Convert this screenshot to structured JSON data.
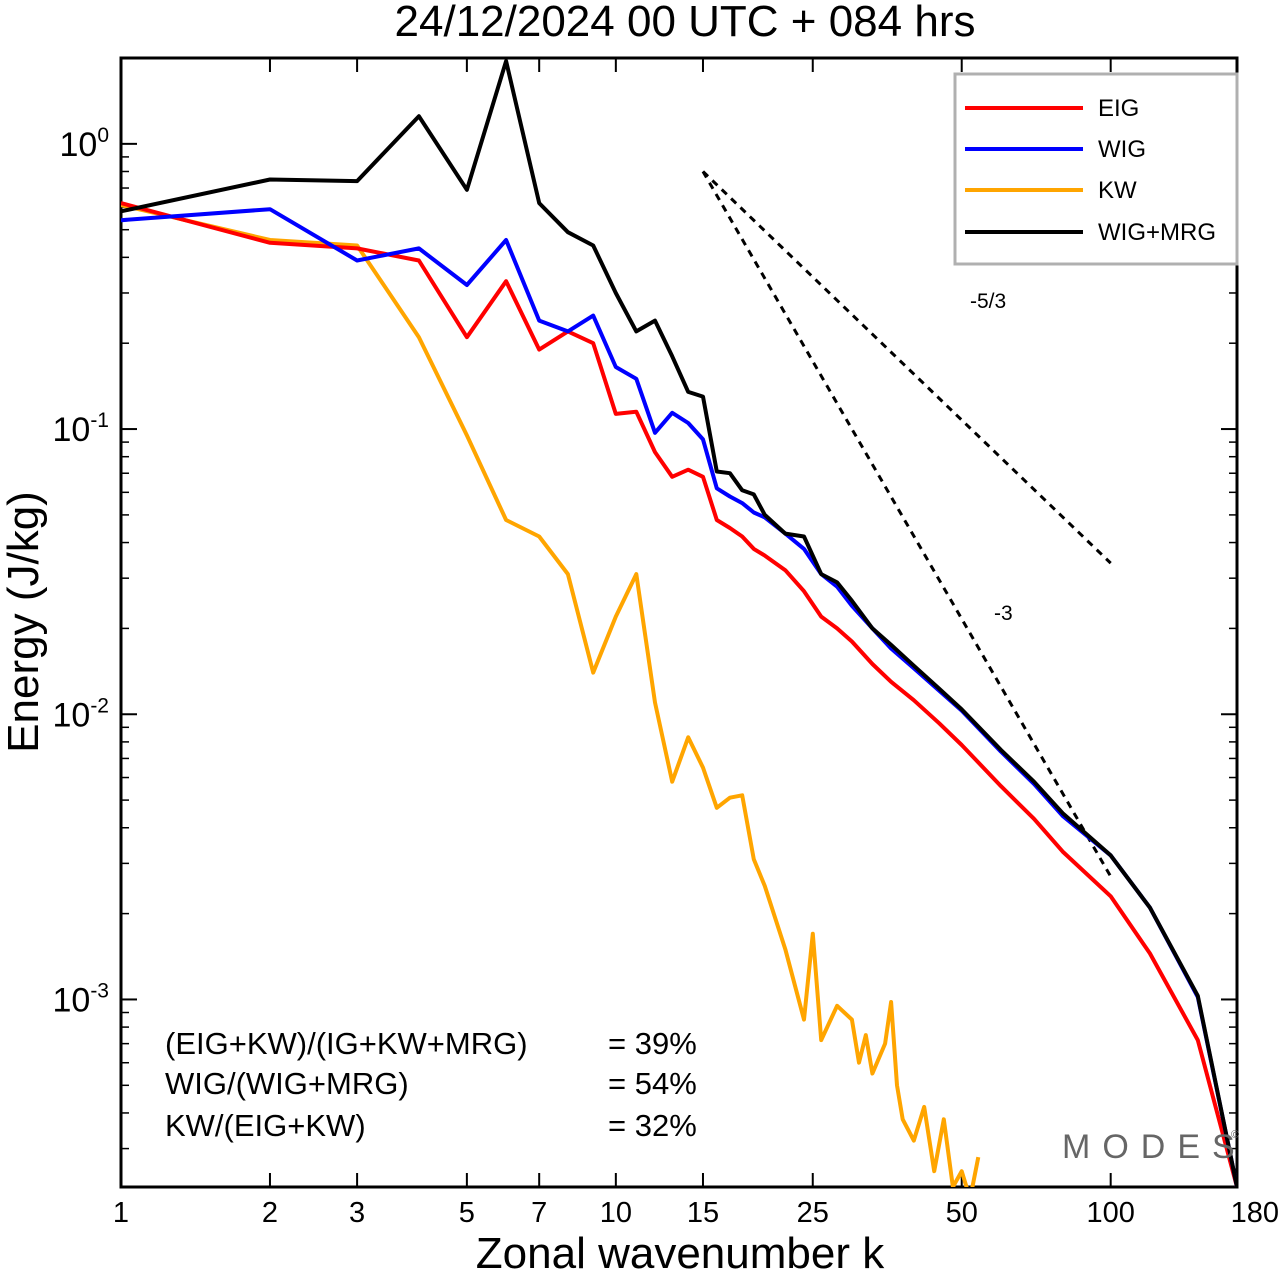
{
  "chart_data": {
    "type": "line",
    "title": "24/12/2024  00 UTC  + 084 hrs",
    "xlabel": "Zonal wavenumber k",
    "ylabel": "Energy (J/kg)",
    "xscale": "log",
    "yscale": "log",
    "xlim": [
      1,
      180
    ],
    "ylim": [
      0.00022,
      2.0
    ],
    "xticks": [
      1,
      2,
      3,
      5,
      7,
      10,
      15,
      25,
      50,
      100,
      180
    ],
    "yticks": [
      {
        "value": 1.0,
        "base": "10",
        "exp": "0"
      },
      {
        "value": 0.1,
        "base": "10",
        "exp": "-1"
      },
      {
        "value": 0.01,
        "base": "10",
        "exp": "-2"
      },
      {
        "value": 0.001,
        "base": "10",
        "exp": "-3"
      }
    ],
    "legend_position": "top-right",
    "series": [
      {
        "name": "EIG",
        "color": "#ff0000",
        "x": [
          1,
          2,
          3,
          4,
          5,
          6,
          7,
          8,
          9,
          10,
          11,
          12,
          13,
          14,
          15,
          16,
          17,
          18,
          19,
          20,
          22,
          24,
          26,
          28,
          30,
          33,
          36,
          40,
          45,
          50,
          60,
          70,
          80,
          100,
          120,
          150,
          180
        ],
        "y": [
          0.62,
          0.45,
          0.43,
          0.39,
          0.21,
          0.33,
          0.19,
          0.22,
          0.2,
          0.113,
          0.115,
          0.083,
          0.068,
          0.072,
          0.068,
          0.048,
          0.045,
          0.042,
          0.038,
          0.036,
          0.032,
          0.027,
          0.022,
          0.02,
          0.018,
          0.015,
          0.013,
          0.0112,
          0.0093,
          0.0078,
          0.0056,
          0.0043,
          0.0033,
          0.0023,
          0.00145,
          0.00072,
          0.00022
        ]
      },
      {
        "name": "WIG",
        "color": "#0000ff",
        "x": [
          1,
          2,
          3,
          4,
          5,
          6,
          7,
          8,
          9,
          10,
          11,
          12,
          13,
          14,
          15,
          16,
          17,
          18,
          19,
          20,
          22,
          24,
          26,
          28,
          30,
          33,
          36,
          40,
          45,
          50,
          60,
          70,
          80,
          100,
          120,
          150,
          180
        ],
        "y": [
          0.54,
          0.59,
          0.39,
          0.43,
          0.32,
          0.46,
          0.24,
          0.22,
          0.25,
          0.165,
          0.15,
          0.097,
          0.114,
          0.105,
          0.092,
          0.062,
          0.058,
          0.055,
          0.051,
          0.049,
          0.043,
          0.038,
          0.031,
          0.028,
          0.024,
          0.02,
          0.017,
          0.0145,
          0.0121,
          0.0103,
          0.0074,
          0.0057,
          0.0044,
          0.0032,
          0.0021,
          0.00102,
          0.00022
        ]
      },
      {
        "name": "KW",
        "color": "#ffa500",
        "x": [
          1,
          2,
          3,
          4,
          5,
          6,
          7,
          8,
          9,
          10,
          11,
          12,
          13,
          14,
          15,
          16,
          17,
          18,
          19,
          20,
          22,
          24,
          25,
          26,
          28,
          30,
          31,
          32,
          33,
          35,
          36,
          37,
          38,
          40,
          42,
          44,
          46,
          48,
          50,
          52,
          54
        ],
        "y": [
          0.61,
          0.46,
          0.44,
          0.21,
          0.095,
          0.048,
          0.042,
          0.031,
          0.014,
          0.022,
          0.031,
          0.011,
          0.0058,
          0.0083,
          0.0065,
          0.0047,
          0.0051,
          0.0052,
          0.0031,
          0.0025,
          0.0015,
          0.00085,
          0.0017,
          0.00072,
          0.00095,
          0.00085,
          0.0006,
          0.00075,
          0.00055,
          0.0007,
          0.00098,
          0.0005,
          0.00038,
          0.00032,
          0.00042,
          0.00025,
          0.00038,
          0.00022,
          0.00025,
          0.0002,
          0.00028
        ]
      },
      {
        "name": "WIG+MRG",
        "color": "#000000",
        "x": [
          1,
          2,
          3,
          4,
          5,
          6,
          7,
          8,
          9,
          10,
          11,
          12,
          13,
          14,
          15,
          16,
          17,
          18,
          19,
          20,
          22,
          24,
          26,
          28,
          30,
          33,
          36,
          40,
          45,
          50,
          60,
          70,
          80,
          100,
          120,
          150,
          180
        ],
        "y": [
          0.58,
          0.75,
          0.74,
          1.25,
          0.69,
          1.95,
          0.62,
          0.49,
          0.44,
          0.3,
          0.22,
          0.24,
          0.18,
          0.135,
          0.13,
          0.071,
          0.07,
          0.061,
          0.059,
          0.05,
          0.043,
          0.042,
          0.031,
          0.029,
          0.025,
          0.02,
          0.0175,
          0.0148,
          0.0123,
          0.0104,
          0.0075,
          0.0058,
          0.0045,
          0.0032,
          0.0021,
          0.00103,
          0.00022
        ]
      }
    ],
    "reference_slopes": [
      {
        "label": "-5/3",
        "slope": -1.6667,
        "x_start": 15,
        "x_end": 100,
        "y_start": 0.8
      },
      {
        "label": "-3",
        "slope": -3,
        "x_start": 15,
        "x_end": 100,
        "y_start": 0.8
      }
    ],
    "annotations": [
      {
        "label": "(EIG+KW)/(IG+KW+MRG)",
        "value": "= 39%"
      },
      {
        "label": "WIG/(WIG+MRG)",
        "value": "= 54%"
      },
      {
        "label": "KW/(EIG+KW)",
        "value": "= 32%"
      }
    ],
    "watermark": "MODES",
    "watermark_mark": "©"
  }
}
